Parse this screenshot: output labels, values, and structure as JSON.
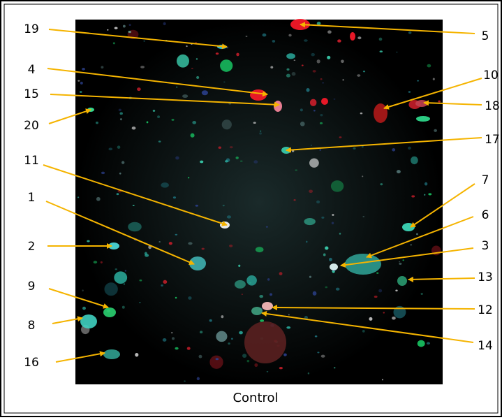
{
  "labels": [
    "19",
    "4",
    "15",
    "20",
    "11",
    "1",
    "2",
    "9",
    "8",
    "16",
    "5",
    "10",
    "18",
    "17",
    "7",
    "6",
    "3",
    "13",
    "12",
    "14"
  ],
  "caption": "Control"
}
